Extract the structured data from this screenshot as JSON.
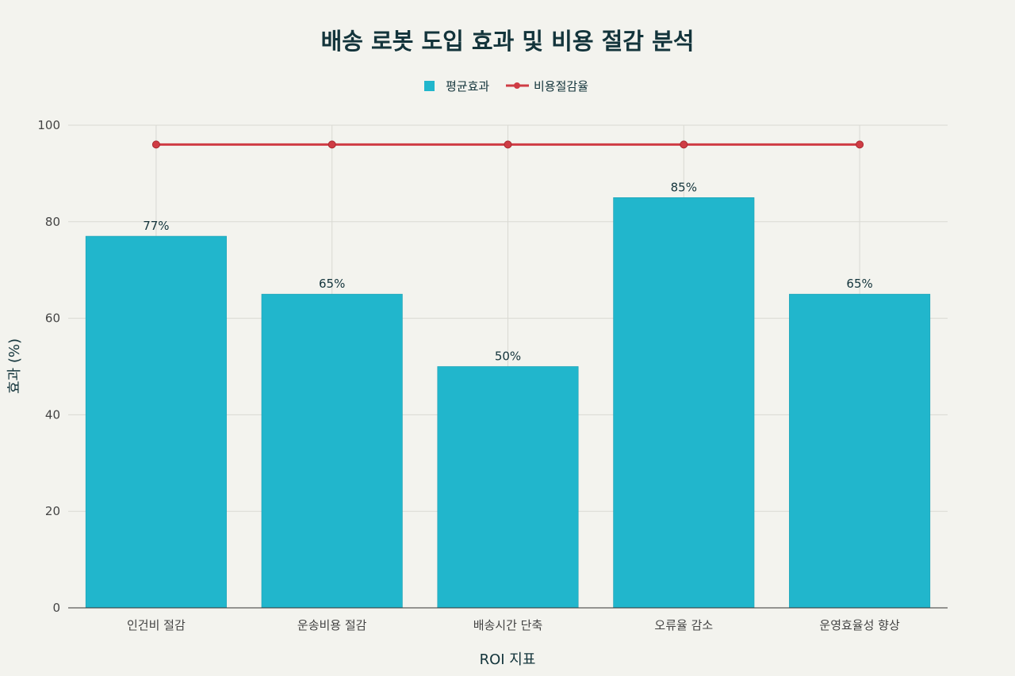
{
  "chart_data": {
    "type": "bar",
    "title": "배송 로봇 도입 효과 및 비용 절감 분석",
    "xlabel": "ROI 지표",
    "ylabel": "효과 (%)",
    "categories": [
      "인건비 절감",
      "운송비용 절감",
      "배송시간 단축",
      "오류율 감소",
      "운영효율성 향상"
    ],
    "series": [
      {
        "name": "평균효과",
        "kind": "bar",
        "color": "#21b6cc",
        "values": [
          77,
          65,
          50,
          85,
          65
        ],
        "labels": [
          "77%",
          "65%",
          "50%",
          "85%",
          "65%"
        ]
      },
      {
        "name": "비용절감율",
        "kind": "line",
        "color": "#cf3c44",
        "values": [
          96,
          96,
          96,
          96,
          96
        ]
      }
    ],
    "ylim": [
      0,
      100
    ],
    "yticks": [
      0,
      20,
      40,
      60,
      80,
      100
    ],
    "grid": true,
    "legend_position": "top-center"
  }
}
